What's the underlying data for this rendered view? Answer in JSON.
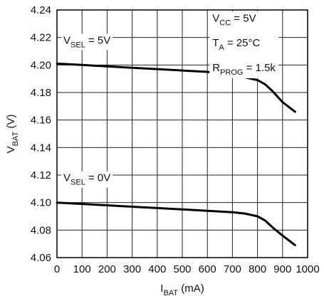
{
  "chart_data": {
    "type": "line",
    "xlabel": {
      "main": "I",
      "sub": "BAT",
      "unit": " (mA)"
    },
    "ylabel": {
      "main": "V",
      "sub": "BAT",
      "unit": " (V)"
    },
    "xlim": [
      0,
      1000
    ],
    "ylim": [
      4.06,
      4.24
    ],
    "x_ticks": [
      "0",
      "100",
      "200",
      "300",
      "400",
      "500",
      "600",
      "700",
      "800",
      "900",
      "1000"
    ],
    "y_ticks": [
      "4.06",
      "4.08",
      "4.10",
      "4.12",
      "4.14",
      "4.16",
      "4.18",
      "4.20",
      "4.22",
      "4.24"
    ],
    "grid": true,
    "conditions": [
      {
        "main": "V",
        "sub": "CC",
        "rest": " = 5V"
      },
      {
        "main": "T",
        "sub": "A",
        "rest": " = 25°C"
      },
      {
        "main": "R",
        "sub": "PROG",
        "rest": " = 1.5k"
      }
    ],
    "series": [
      {
        "name": {
          "main": "V",
          "sub": "SEL",
          "rest": " = 5V"
        },
        "x": [
          0,
          100,
          200,
          300,
          400,
          500,
          600,
          700,
          750,
          800,
          830,
          860,
          900,
          950
        ],
        "y": [
          4.201,
          4.2,
          4.199,
          4.198,
          4.197,
          4.196,
          4.195,
          4.193,
          4.191,
          4.189,
          4.186,
          4.181,
          4.173,
          4.166
        ]
      },
      {
        "name": {
          "main": "V",
          "sub": "SEL",
          "rest": " = 0V"
        },
        "x": [
          0,
          100,
          200,
          300,
          400,
          500,
          600,
          700,
          750,
          800,
          830,
          860,
          900,
          950
        ],
        "y": [
          4.1,
          4.099,
          4.098,
          4.097,
          4.096,
          4.095,
          4.094,
          4.093,
          4.092,
          4.09,
          4.087,
          4.082,
          4.076,
          4.069
        ]
      }
    ]
  }
}
